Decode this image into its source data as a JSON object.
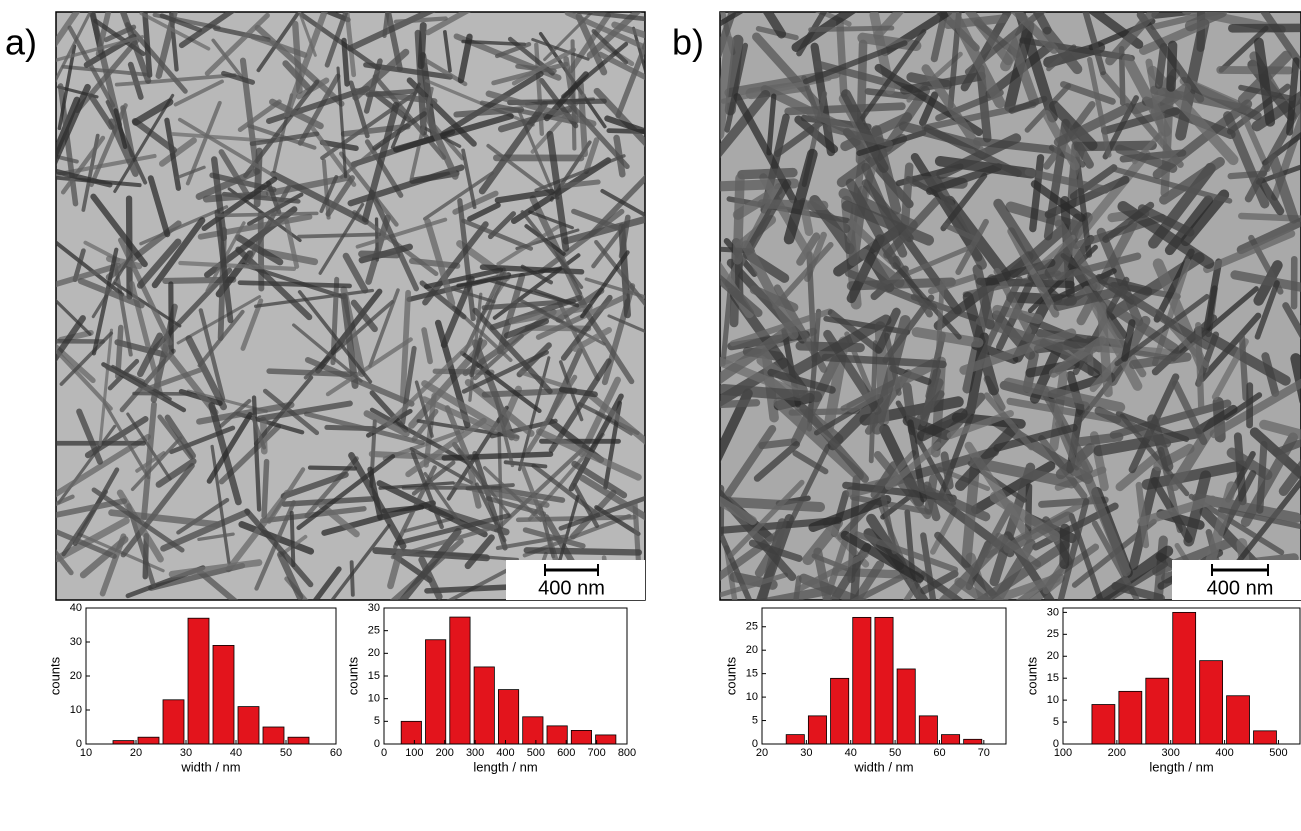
{
  "panels": [
    {
      "label": "a)",
      "scale_bar": "400 nm"
    },
    {
      "label": "b)",
      "scale_bar": "400 nm"
    }
  ],
  "chart_data": [
    {
      "type": "histogram",
      "x_label": "width / nm",
      "y_label": "counts",
      "color": "#e3141c",
      "bins": [
        15,
        20,
        25,
        30,
        35,
        40,
        45,
        50,
        55
      ],
      "counts": [
        1,
        2,
        13,
        37,
        29,
        11,
        5,
        2
      ],
      "xlim": [
        10,
        60
      ],
      "xticks": [
        10,
        20,
        30,
        40,
        50,
        60
      ],
      "ylim": [
        0,
        40
      ],
      "yticks": [
        0,
        10,
        20,
        30,
        40
      ]
    },
    {
      "type": "histogram",
      "x_label": "length / nm",
      "y_label": "counts",
      "color": "#e3141c",
      "bins": [
        50,
        130,
        210,
        290,
        370,
        450,
        530,
        610,
        690,
        770
      ],
      "counts": [
        5,
        23,
        28,
        17,
        12,
        6,
        4,
        3,
        2
      ],
      "xlim": [
        0,
        800
      ],
      "xticks": [
        0,
        100,
        200,
        300,
        400,
        500,
        600,
        700,
        800
      ],
      "ylim": [
        0,
        30
      ],
      "yticks": [
        0,
        5,
        10,
        15,
        20,
        25,
        30
      ]
    },
    {
      "type": "histogram",
      "x_label": "width / nm",
      "y_label": "counts",
      "color": "#e3141c",
      "bins": [
        25,
        30,
        35,
        40,
        45,
        50,
        55,
        60,
        65,
        70
      ],
      "counts": [
        2,
        6,
        14,
        27,
        27,
        16,
        6,
        2,
        1
      ],
      "xlim": [
        20,
        75
      ],
      "xticks": [
        20,
        30,
        40,
        50,
        60,
        70
      ],
      "ylim": [
        0,
        29
      ],
      "yticks": [
        0,
        5,
        10,
        15,
        20,
        25
      ]
    },
    {
      "type": "histogram",
      "x_label": "length / nm",
      "y_label": "counts",
      "color": "#e3141c",
      "bins": [
        150,
        200,
        250,
        300,
        350,
        400,
        450,
        500
      ],
      "counts": [
        9,
        12,
        15,
        30,
        19,
        11,
        3
      ],
      "xlim": [
        100,
        540
      ],
      "xticks": [
        100,
        200,
        300,
        400,
        500
      ],
      "ylim": [
        0,
        31
      ],
      "yticks": [
        0,
        5,
        10,
        15,
        20,
        25,
        30
      ]
    }
  ]
}
